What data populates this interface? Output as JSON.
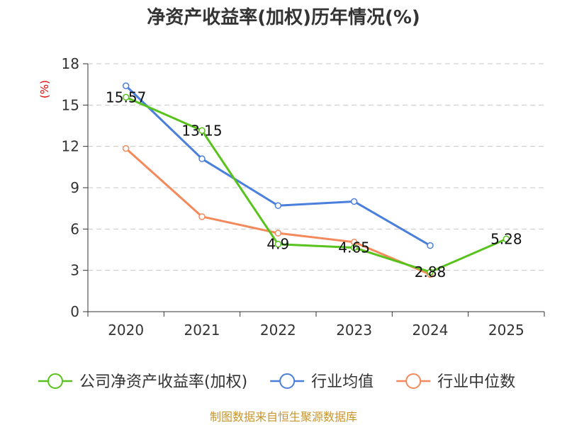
{
  "chart_data": {
    "type": "line",
    "title": "净资产收益率(加权)历年情况(%)",
    "ylabel": "(%)",
    "xlabel": "",
    "ylim": [
      0,
      18
    ],
    "yticks": [
      0,
      3,
      6,
      9,
      12,
      15,
      18
    ],
    "grid": true,
    "legend_position": "bottom",
    "categories": [
      "2020",
      "2021",
      "2022",
      "2023",
      "2024",
      "2025"
    ],
    "series": [
      {
        "name": "公司净资产收益率(加权)",
        "color": "#58c31c",
        "values": [
          15.57,
          13.15,
          4.9,
          4.65,
          2.88,
          5.28
        ],
        "labels": [
          "15.57",
          "13.15",
          "4.9",
          "4.65",
          "2.88",
          "5.28"
        ]
      },
      {
        "name": "行业均值",
        "color": "#4a7fdc",
        "values": [
          16.4,
          11.1,
          7.7,
          8.0,
          4.8,
          null
        ]
      },
      {
        "name": "行业中位数",
        "color": "#f4895b",
        "values": [
          11.85,
          6.9,
          5.7,
          5.05,
          2.7,
          null
        ]
      }
    ]
  },
  "source": "制图数据来自恒生聚源数据库"
}
